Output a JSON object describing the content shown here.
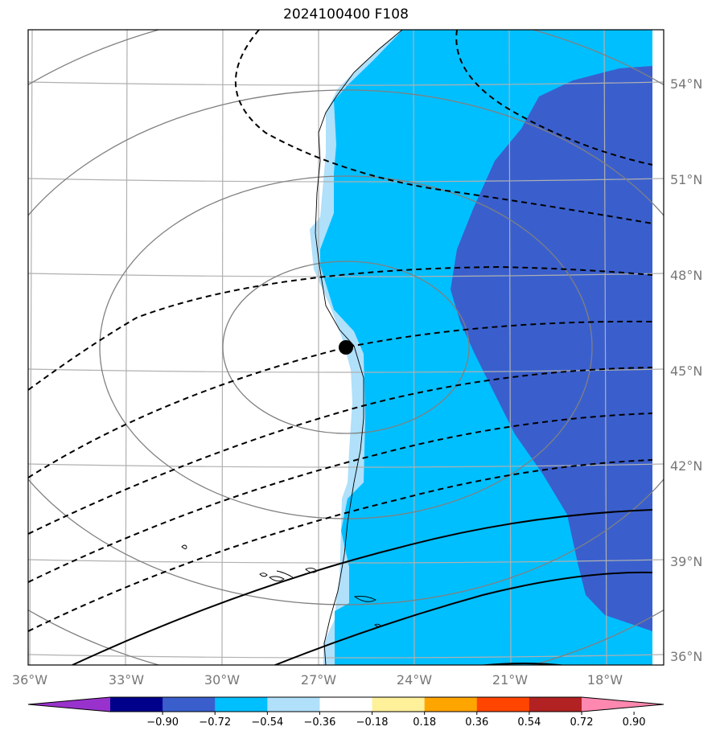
{
  "title": "2024100400 F108",
  "map": {
    "projection": "lambert-conformal",
    "lon_range": [
      -36,
      -16
    ],
    "lat_range": [
      36,
      55
    ],
    "lon_ticks": [
      "36°W",
      "33°W",
      "30°W",
      "27°W",
      "24°W",
      "21°W",
      "18°W"
    ],
    "lat_ticks": [
      "54°N",
      "51°N",
      "48°N",
      "45°N",
      "42°N",
      "39°N",
      "36°N"
    ],
    "grid": true,
    "storm_center": {
      "lon": -26.3,
      "lat": 45.7
    },
    "fill_field": "anomaly",
    "contours": {
      "gray_solid": "concentric rings around storm center",
      "black_dashed": "negative isolines",
      "black_solid": "positive isolines"
    }
  },
  "colorbar": {
    "labels": [
      "−0.90",
      "−0.72",
      "−0.54",
      "−0.36",
      "−0.18",
      "0.18",
      "0.36",
      "0.54",
      "0.72",
      "0.90"
    ],
    "colors": [
      "#9932cc",
      "#00008b",
      "#3a5fcd",
      "#00bfff",
      "#b0e0fa",
      "#ffffff",
      "#fff09a",
      "#ffa500",
      "#ff4500",
      "#b22222",
      "#ff88b0"
    ],
    "extend": "both"
  },
  "colors": {
    "deep_blue": "#3a5fcd",
    "cyan": "#00bfff",
    "light_blue": "#b0e0fa",
    "grid": "#b0b0b0",
    "ring": "#808080"
  }
}
